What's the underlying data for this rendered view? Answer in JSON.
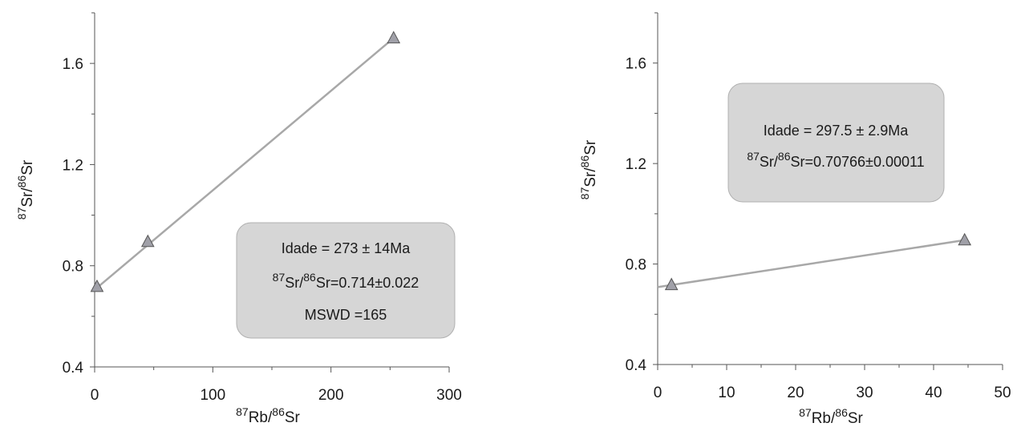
{
  "chart_data": [
    {
      "type": "scatter",
      "xlim": [
        0,
        300
      ],
      "ylim": [
        0.4,
        1.8
      ],
      "xticks": [
        0,
        100,
        200,
        300
      ],
      "xtick_labels": [
        "0",
        "100",
        "200",
        "300"
      ],
      "yticks": [
        0.4,
        0.8,
        1.2,
        1.6
      ],
      "ytick_labels": [
        "0.4",
        "0.8",
        "1.2",
        "1.6"
      ],
      "xlabel": {
        "sup1": "87",
        "base1": "Rb/",
        "sup2": "86",
        "base2": "Sr"
      },
      "ylabel": {
        "sup1": "87",
        "base1": "Sr/",
        "sup2": "86",
        "base2": "Sr"
      },
      "points": [
        {
          "x": 2,
          "y": 0.717
        },
        {
          "x": 45,
          "y": 0.895
        },
        {
          "x": 253,
          "y": 1.7
        }
      ],
      "regression_line": {
        "x": [
          0,
          253
        ],
        "y": [
          0.705,
          1.7
        ]
      },
      "marker_color": "#a0a0a8",
      "line_color": "#a8a8a8",
      "annotation": {
        "line1": "Idade = 273 ± 14Ma",
        "line2": {
          "sup1": "87",
          "base1": "Sr/",
          "sup2": "86",
          "base2": "Sr=0.714±0.022"
        },
        "line3": "MSWD =165",
        "placement": "lower-right"
      }
    },
    {
      "type": "scatter",
      "xlim": [
        0,
        50
      ],
      "ylim": [
        0.4,
        1.8
      ],
      "xticks": [
        0,
        10,
        20,
        30,
        40,
        50
      ],
      "xtick_labels": [
        "0",
        "10",
        "20",
        "30",
        "40",
        "50"
      ],
      "yticks": [
        0.4,
        0.8,
        1.2,
        1.6
      ],
      "ytick_labels": [
        "0.4",
        "0.8",
        "1.2",
        "1.6"
      ],
      "xlabel": {
        "sup1": "87",
        "base1": "Rb/",
        "sup2": "86",
        "base2": "Sr"
      },
      "ylabel": {
        "sup1": "87",
        "base1": "Sr/",
        "sup2": "86",
        "base2": "Sr"
      },
      "points": [
        {
          "x": 2,
          "y": 0.717
        },
        {
          "x": 44.5,
          "y": 0.895
        }
      ],
      "regression_line": {
        "x": [
          0,
          44.5
        ],
        "y": [
          0.708,
          0.895
        ]
      },
      "marker_color": "#a0a0a8",
      "line_color": "#a8a8a8",
      "annotation": {
        "line1": "Idade = 297.5 ± 2.9Ma",
        "line2": {
          "sup1": "87",
          "base1": "Sr/",
          "sup2": "86",
          "base2": "Sr=0.70766±0.00011"
        },
        "line3": "",
        "placement": "top-center"
      }
    }
  ]
}
